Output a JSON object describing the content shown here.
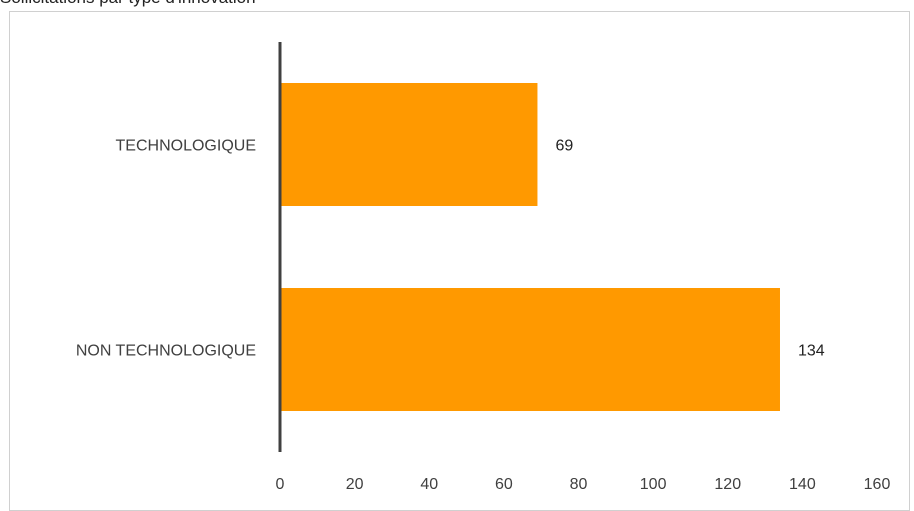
{
  "chart_data": {
    "type": "bar",
    "orientation": "horizontal",
    "title": "Sollicitations par type d'innovation",
    "categories": [
      "TECHNOLOGIQUE",
      "NON TECHNOLOGIQUE"
    ],
    "values": [
      69,
      134
    ],
    "data_labels": [
      "69",
      "134"
    ],
    "xlim": [
      0,
      160
    ],
    "x_ticks": [
      0,
      20,
      40,
      60,
      80,
      100,
      120,
      140,
      160
    ],
    "xlabel": "",
    "ylabel": "",
    "grid": false,
    "legend": "none",
    "colors": {
      "bar": "#ff9900",
      "axis": "#404040",
      "text": "#404040",
      "data_label": "#222222"
    }
  }
}
